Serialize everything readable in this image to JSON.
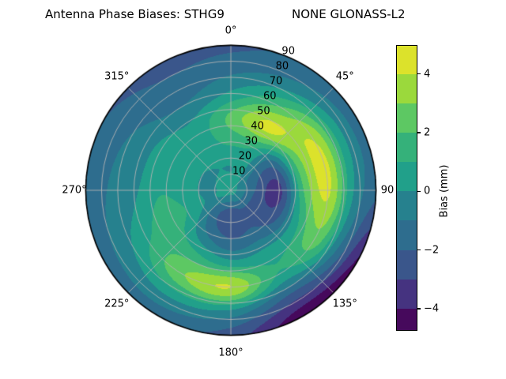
{
  "title": {
    "left": "Antenna Phase Biases: STHG9",
    "right": "NONE GLONASS-L2"
  },
  "chart_data": {
    "type": "heatmap",
    "projection": "polar",
    "title": "Antenna Phase Biases: STHG9        NONE GLONASS-L2",
    "grid_on": true,
    "grid_color": "#b3b3b3",
    "outline_color": "#000000",
    "angular_ticks": [
      {
        "label": "0°",
        "deg": 0,
        "pad": 18
      },
      {
        "label": "45°",
        "deg": 45,
        "pad": 20
      },
      {
        "label": "90",
        "deg": 90,
        "pad": 14
      },
      {
        "label": "135°",
        "deg": 135,
        "pad": 20
      },
      {
        "label": "180°",
        "deg": 180,
        "pad": 22
      },
      {
        "label": "225°",
        "deg": 225,
        "pad": 20
      },
      {
        "label": "270°",
        "deg": 270,
        "pad": 14
      },
      {
        "label": "315°",
        "deg": 315,
        "pad": 20
      }
    ],
    "radial_ticks": {
      "label_angle_deg": 22.5,
      "values": [
        10,
        20,
        30,
        40,
        50,
        60,
        70,
        80,
        90
      ],
      "max_radius": 90,
      "ring_step": 10,
      "spoke_step_deg": 45
    },
    "bias_grid_mm": {
      "azimuth_deg": [
        0,
        30,
        60,
        90,
        120,
        150,
        180,
        210,
        240,
        270,
        300,
        330
      ],
      "radius": [
        0,
        15,
        30,
        45,
        60,
        75,
        90
      ],
      "values": [
        [
          0.45,
          0.0,
          1.2,
          2.3,
          0.2,
          -1.3,
          -2.2
        ],
        [
          0.45,
          0.1,
          1.0,
          4.3,
          2.0,
          -0.6,
          -1.8
        ],
        [
          0.45,
          -1.4,
          -1.8,
          2.8,
          4.0,
          0.4,
          -1.6
        ],
        [
          0.45,
          -2.0,
          -3.3,
          2.0,
          4.2,
          0.2,
          -1.8
        ],
        [
          0.45,
          -2.2,
          -2.6,
          0.6,
          2.6,
          -1.0,
          -4.2
        ],
        [
          0.45,
          -2.2,
          -1.7,
          0.4,
          0.9,
          -2.2,
          -4.7
        ],
        [
          0.45,
          -2.6,
          -2.0,
          0.4,
          4.0,
          -0.2,
          -2.5
        ],
        [
          0.45,
          -1.8,
          -1.0,
          1.2,
          2.9,
          0.2,
          -1.6
        ],
        [
          0.45,
          -0.2,
          0.9,
          1.5,
          0.8,
          -0.4,
          -1.6
        ],
        [
          0.45,
          -0.2,
          0.6,
          0.9,
          -0.2,
          -0.9,
          -1.8
        ],
        [
          0.45,
          -0.1,
          0.4,
          0.7,
          -0.5,
          -1.2,
          -2.0
        ],
        [
          0.45,
          0.0,
          0.6,
          0.3,
          -1.0,
          -1.8,
          -2.3
        ]
      ]
    },
    "colorbar": {
      "label": "Bias (mm)",
      "vmin": -4.73,
      "vmax": 4.96,
      "ticks": [
        {
          "v": 4,
          "label": "4"
        },
        {
          "v": 2,
          "label": "2"
        },
        {
          "v": 0,
          "label": "0"
        },
        {
          "v": -2,
          "label": "−2"
        },
        {
          "v": -4,
          "label": "−4"
        }
      ],
      "bands": [
        {
          "lo": 4,
          "hi": 4.96,
          "color": "#dce22b"
        },
        {
          "lo": 3,
          "hi": 4,
          "color": "#9bd93c"
        },
        {
          "lo": 2,
          "hi": 3,
          "color": "#5dc863"
        },
        {
          "lo": 1,
          "hi": 2,
          "color": "#35b17a"
        },
        {
          "lo": 0,
          "hi": 1,
          "color": "#21a08a"
        },
        {
          "lo": -1,
          "hi": 0,
          "color": "#26818e"
        },
        {
          "lo": -2,
          "hi": -1,
          "color": "#2e6d8e"
        },
        {
          "lo": -3,
          "hi": -2,
          "color": "#3a568b"
        },
        {
          "lo": -4,
          "hi": -3,
          "color": "#453380"
        },
        {
          "lo": -4.73,
          "hi": -4,
          "color": "#46095c"
        }
      ]
    }
  }
}
